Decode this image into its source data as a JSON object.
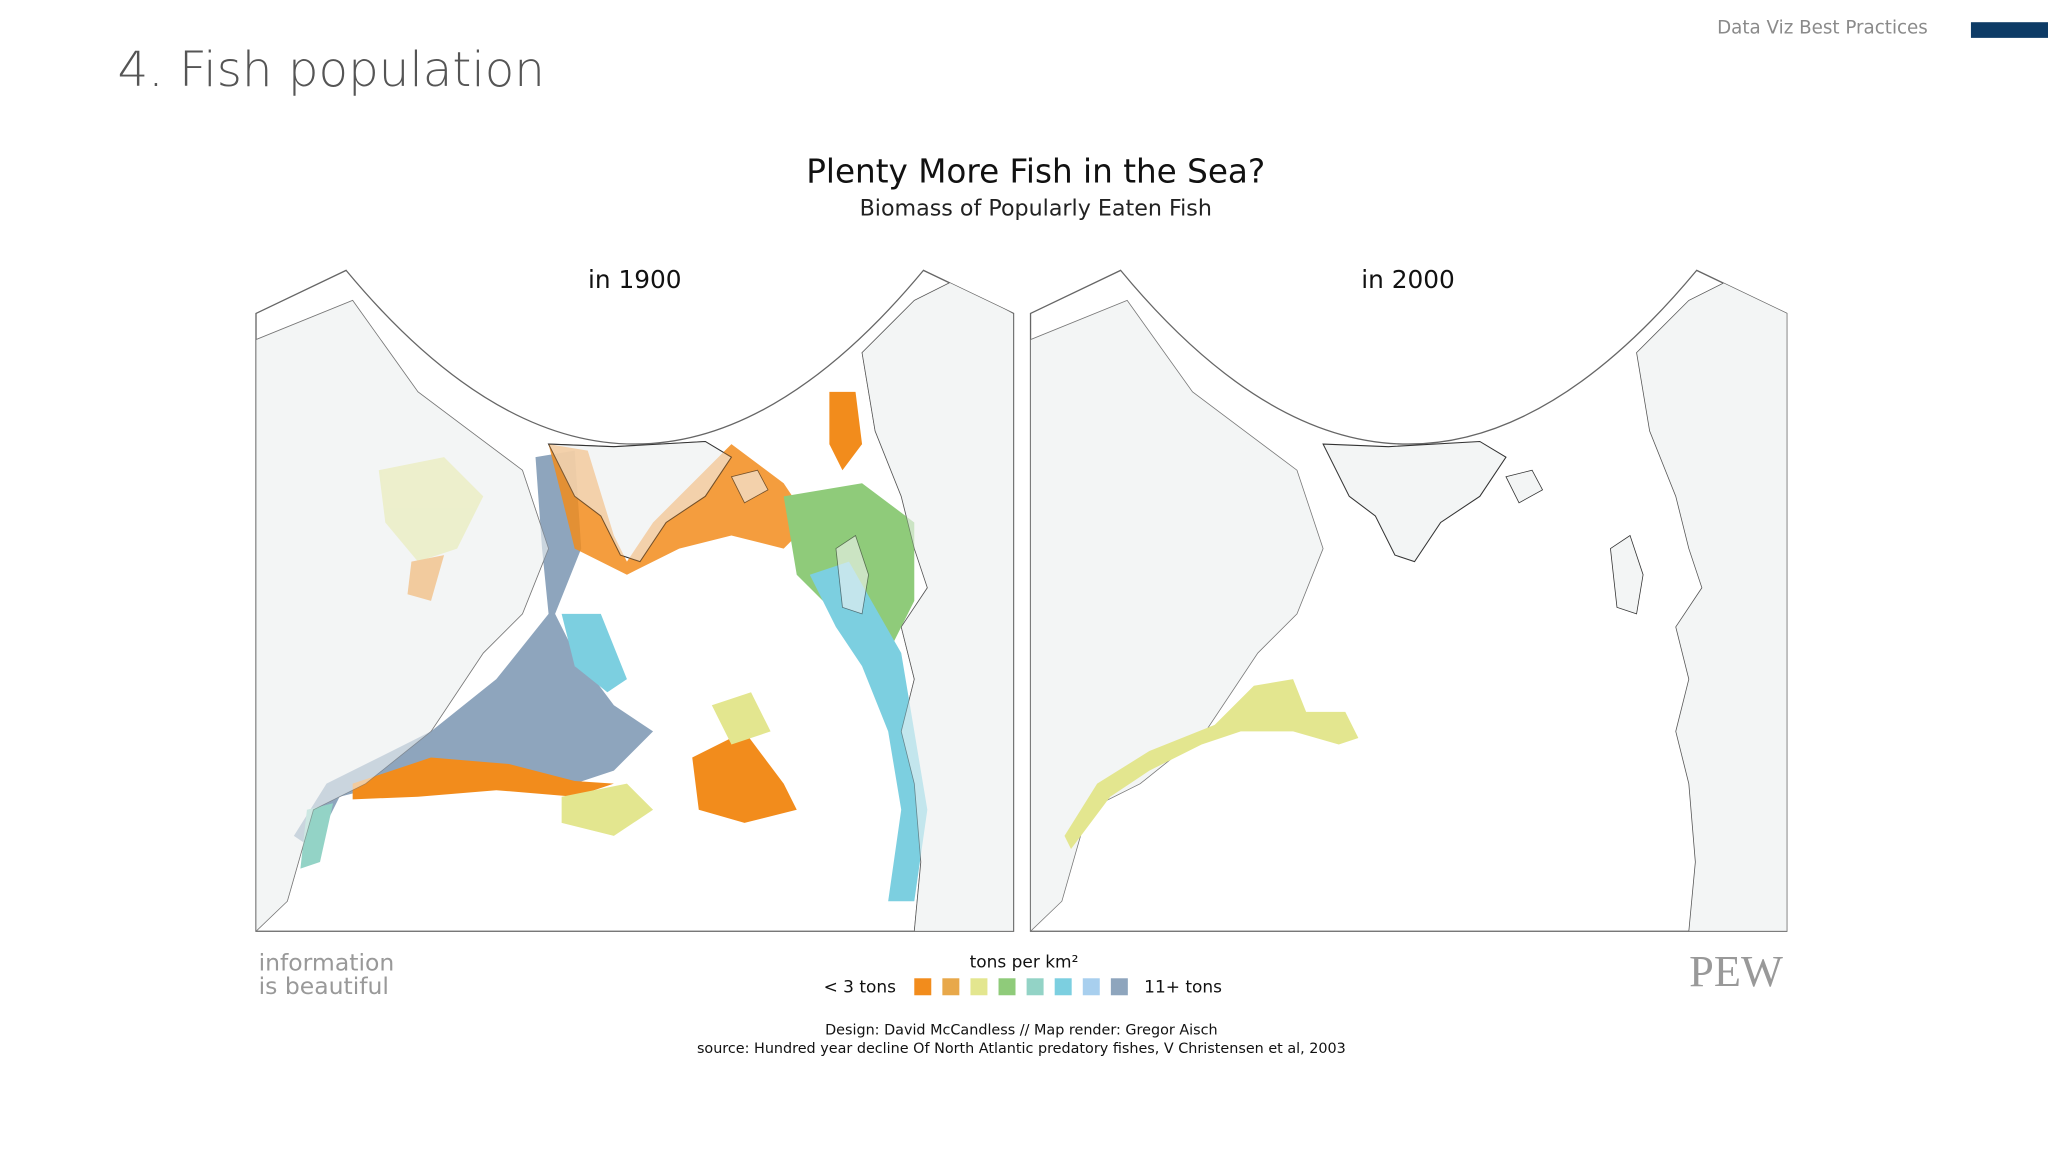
{
  "header": {
    "section": "Data Viz Best Practices",
    "title": "4. Fish population"
  },
  "infographic": {
    "title": "Plenty More Fish in the Sea?",
    "subtitle": "Biomass of Popularly Eaten Fish",
    "panels": [
      {
        "label": "in 1900"
      },
      {
        "label": "in 2000"
      }
    ],
    "legend": {
      "title": "tons per km²",
      "min_label": "< 3 tons",
      "max_label": "11+ tons",
      "colors": [
        "#f28c1c",
        "#e8a84a",
        "#e3e68f",
        "#8fcb7a",
        "#93d3c6",
        "#7ccfe0",
        "#a8cfee",
        "#8ea5bd"
      ]
    },
    "brand": {
      "line1": "information",
      "line2": "is beautiful",
      "partner": "PEW"
    },
    "credits": [
      "Design: David McCandless // Map render: Gregor Aisch",
      "source: Hundred year decline Of North Atlantic predatory fishes, V Christensen et al, 2003"
    ]
  }
}
